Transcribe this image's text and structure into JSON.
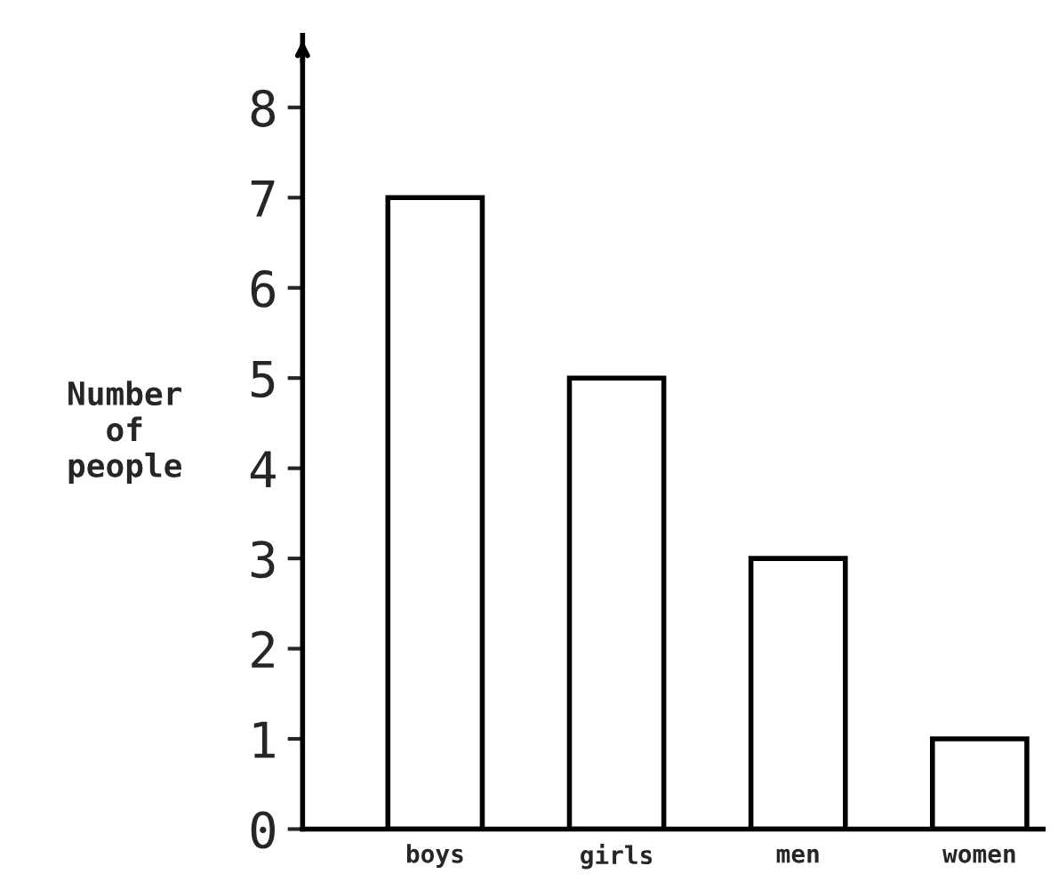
{
  "chart_data": {
    "type": "bar",
    "ylabel": "Number\nof\npeople",
    "categories": [
      "boys",
      "girls",
      "men",
      "women"
    ],
    "values": [
      7,
      5,
      3,
      1
    ],
    "color": "#ffffff",
    "ylim": [
      0,
      8.8
    ],
    "yticks": [
      0,
      1,
      2,
      3,
      4,
      5,
      6,
      7,
      8
    ],
    "grid": false,
    "legend": false
  }
}
